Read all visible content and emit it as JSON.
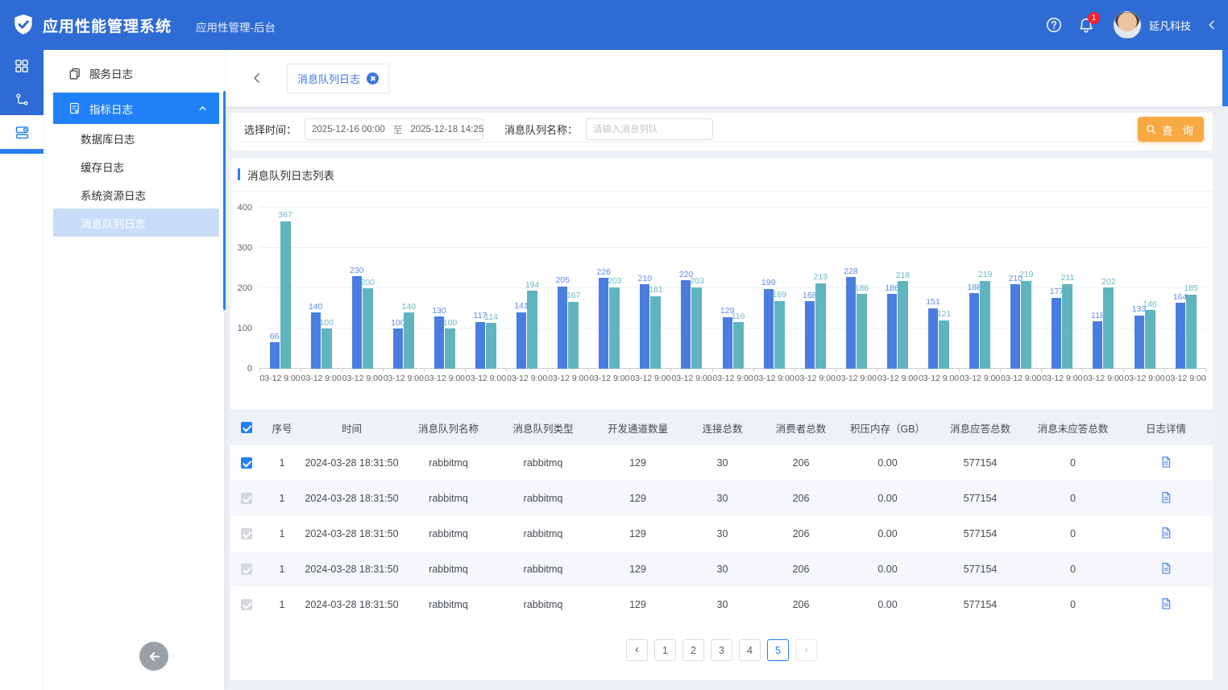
{
  "header": {
    "app_title": "应用性能管理系统",
    "subtitle": "应用性管理-后台",
    "company": "延凡科技",
    "bell_badge": "1"
  },
  "sidebar": {
    "service_log": "服务日志",
    "metric_log": "指标日志",
    "submenu": [
      "数据库日志",
      "缓存日志",
      "系统资源日志",
      "消息队列日志"
    ]
  },
  "tabbar": {
    "tag": "消息队列日志"
  },
  "filter": {
    "time_label": "选择时间：",
    "date_start": "2025-12-16 00:00",
    "date_sep": "至",
    "date_end": "2025-12-18 14:25",
    "queue_label": "消息队列名称：",
    "queue_placeholder": "请输入消息列队",
    "search_label": "查 询"
  },
  "chart_data": {
    "type": "bar",
    "title": "消息队列日志列表",
    "x": [
      "03-12 9:00",
      "03-12 9:00",
      "03-12 9:00",
      "03-12 9:00",
      "03-12 9:00",
      "03-12 9:00",
      "03-12 9:00",
      "03-12 9:00",
      "03-12 9:00",
      "03-12 9:00",
      "03-12 9:00",
      "03-12 9:00",
      "03-12 9:00",
      "03-12 9:00",
      "03-12 9:00",
      "03-12 9:00",
      "03-12 9:00",
      "03-12 9:00",
      "03-12 9:00",
      "03-12 9:00",
      "03-12 9:00",
      "03-12 9:00",
      "03-12 9:00"
    ],
    "series": [
      {
        "name": "series-blue",
        "color": "#4a7de0",
        "values": [
          66,
          140,
          230,
          100,
          130,
          117,
          141,
          205,
          226,
          210,
          220,
          129,
          199,
          168,
          228,
          186,
          151,
          188,
          210,
          177,
          118,
          133,
          164
        ]
      },
      {
        "name": "series-teal",
        "color": "#5fb4c0",
        "values": [
          367,
          100,
          200,
          140,
          100,
          114,
          194,
          167,
          203,
          181,
          203,
          116,
          169,
          213,
          186,
          218,
          121,
          219,
          219,
          211,
          202,
          146,
          185
        ]
      }
    ],
    "ylim": [
      0,
      400
    ],
    "yticks": [
      0,
      100,
      200,
      300,
      400
    ],
    "grid": true,
    "legend": "none",
    "value_labels": true
  },
  "table": {
    "columns": [
      "序号",
      "时间",
      "消息队列名称",
      "消息队列类型",
      "开发通道数量",
      "连接总数",
      "消费者总数",
      "积压内存（GB）",
      "消息应答总数",
      "消息未应答总数",
      "日志详情"
    ],
    "rows": [
      {
        "checkbox": "blue",
        "seq": "1",
        "time": "2024-03-28 18:31:50",
        "name": "rabbitmq",
        "type": "rabbitmq",
        "channels": "129",
        "connections": "30",
        "consumers": "206",
        "backlog": "0.00",
        "acked": "577154",
        "unacked": "0"
      },
      {
        "checkbox": "gray",
        "seq": "1",
        "time": "2024-03-28 18:31:50",
        "name": "rabbitmq",
        "type": "rabbitmq",
        "channels": "129",
        "connections": "30",
        "consumers": "206",
        "backlog": "0.00",
        "acked": "577154",
        "unacked": "0"
      },
      {
        "checkbox": "gray",
        "seq": "1",
        "time": "2024-03-28 18:31:50",
        "name": "rabbitmq",
        "type": "rabbitmq",
        "channels": "129",
        "connections": "30",
        "consumers": "206",
        "backlog": "0.00",
        "acked": "577154",
        "unacked": "0"
      },
      {
        "checkbox": "gray",
        "seq": "1",
        "time": "2024-03-28 18:31:50",
        "name": "rabbitmq",
        "type": "rabbitmq",
        "channels": "129",
        "connections": "30",
        "consumers": "206",
        "backlog": "0.00",
        "acked": "577154",
        "unacked": "0"
      },
      {
        "checkbox": "gray",
        "seq": "1",
        "time": "2024-03-28 18:31:50",
        "name": "rabbitmq",
        "type": "rabbitmq",
        "channels": "129",
        "connections": "30",
        "consumers": "206",
        "backlog": "0.00",
        "acked": "577154",
        "unacked": "0"
      }
    ]
  },
  "pagination": {
    "pages": [
      "1",
      "2",
      "3",
      "4",
      "5"
    ],
    "active": "5"
  },
  "colors": {
    "header_blue": "#2e6bd4",
    "selected_blue": "#2080f7",
    "bar_blue": "#4a7de0",
    "bar_teal": "#5fb4c0",
    "search_orange": "#f7a944",
    "badge_red": "#f5222d"
  }
}
